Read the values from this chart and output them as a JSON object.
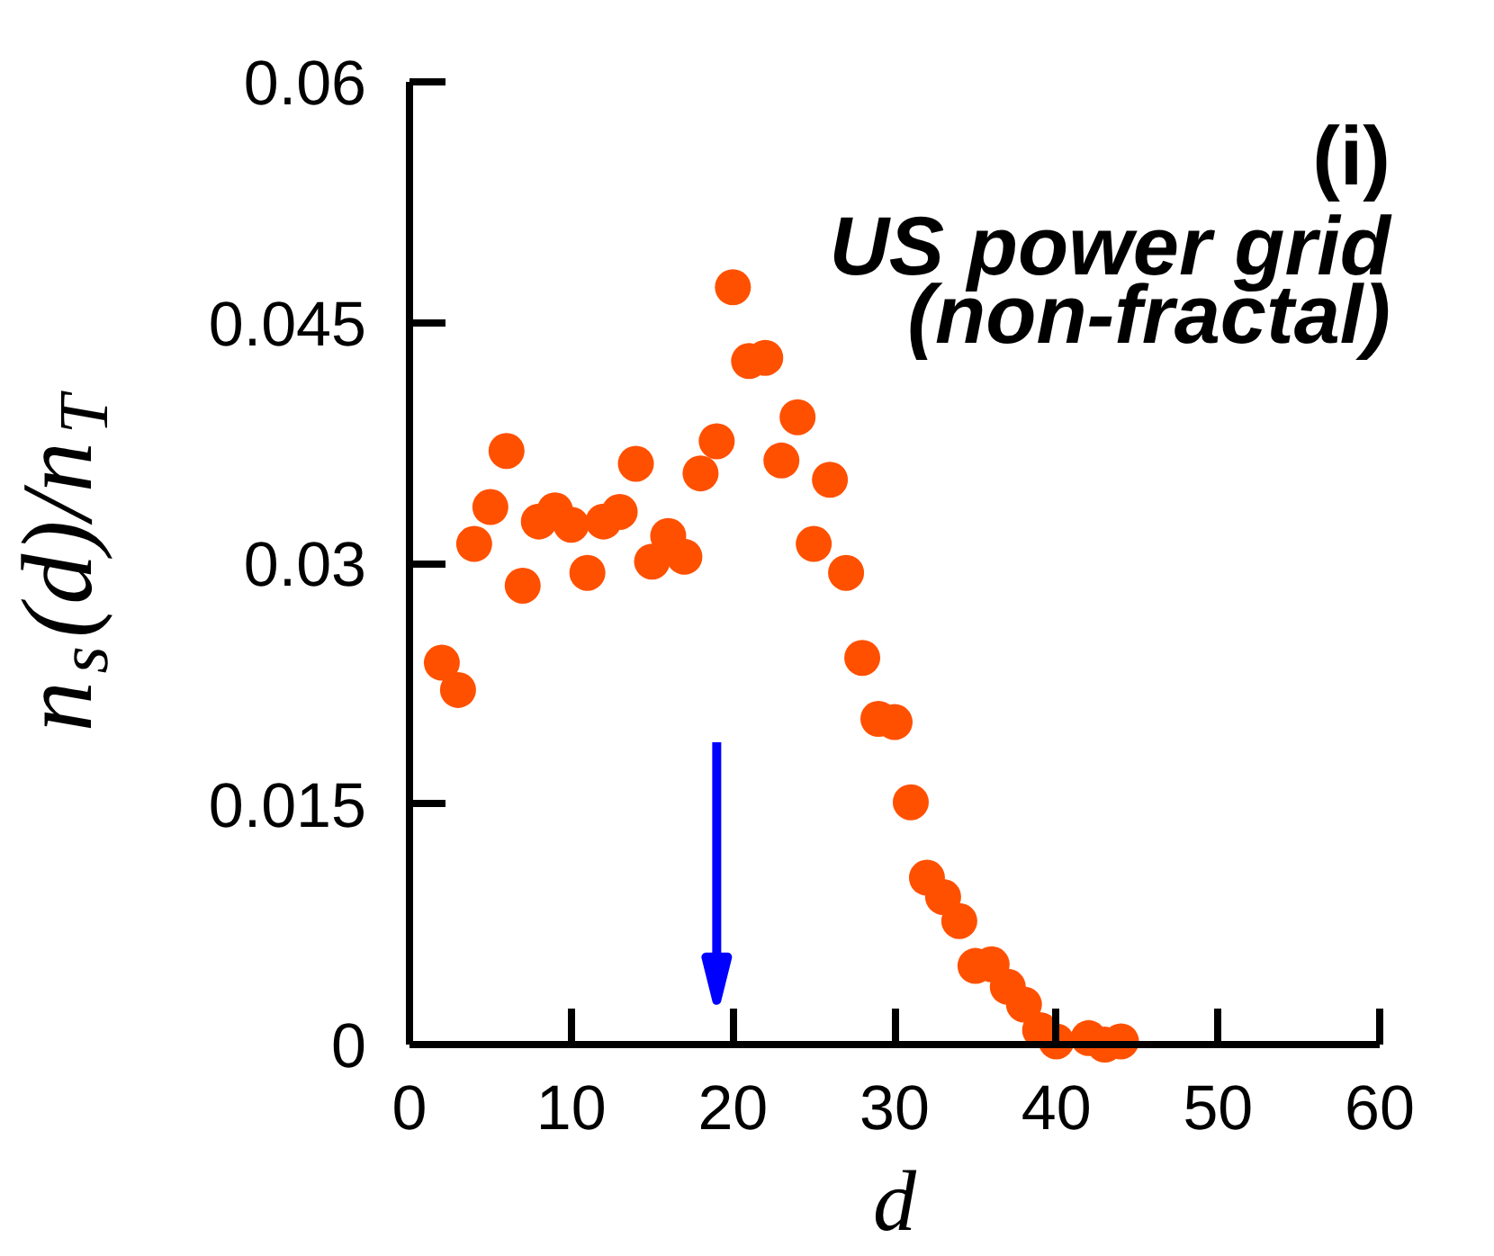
{
  "chart_data": {
    "type": "scatter",
    "annotations": [
      "(i)",
      "US power grid",
      "(non-fractal)"
    ],
    "xlabel": "d",
    "ylabel": "n$_{s}$(d)/n$_{T}$",
    "x": [
      2,
      3,
      4,
      5,
      6,
      7,
      8,
      9,
      10,
      11,
      12,
      13,
      14,
      15,
      16,
      17,
      18,
      19,
      20,
      21,
      22,
      23,
      24,
      25,
      26,
      27,
      28,
      29,
      30,
      31,
      32,
      33,
      34,
      35,
      36,
      37,
      38,
      39,
      40,
      42,
      43,
      44
    ],
    "values": [
      0.0238,
      0.0221,
      0.0312,
      0.0335,
      0.037,
      0.0286,
      0.0326,
      0.0333,
      0.0324,
      0.0294,
      0.0326,
      0.0332,
      0.0362,
      0.0301,
      0.0317,
      0.0304,
      0.0356,
      0.0376,
      0.0472,
      0.0426,
      0.0428,
      0.0364,
      0.0391,
      0.0312,
      0.0352,
      0.0294,
      0.0241,
      0.0203,
      0.0201,
      0.0151,
      0.0104,
      0.0092,
      0.0077,
      0.0049,
      0.005,
      0.0036,
      0.0025,
      0.0009,
      0.0002,
      0.0004,
      0.0,
      0.0002
    ],
    "color": "#ff5000",
    "marker": "circle",
    "xlim": [
      0,
      60
    ],
    "ylim": [
      0,
      0.06
    ],
    "xticks": [
      0,
      10,
      20,
      30,
      40,
      50,
      60
    ],
    "yticks": [
      0,
      0.015,
      0.03,
      0.045,
      0.06
    ],
    "grid": false,
    "ref_lines": [
      {
        "axis": "x",
        "value": 19,
        "color": "#0000ff"
      }
    ]
  }
}
